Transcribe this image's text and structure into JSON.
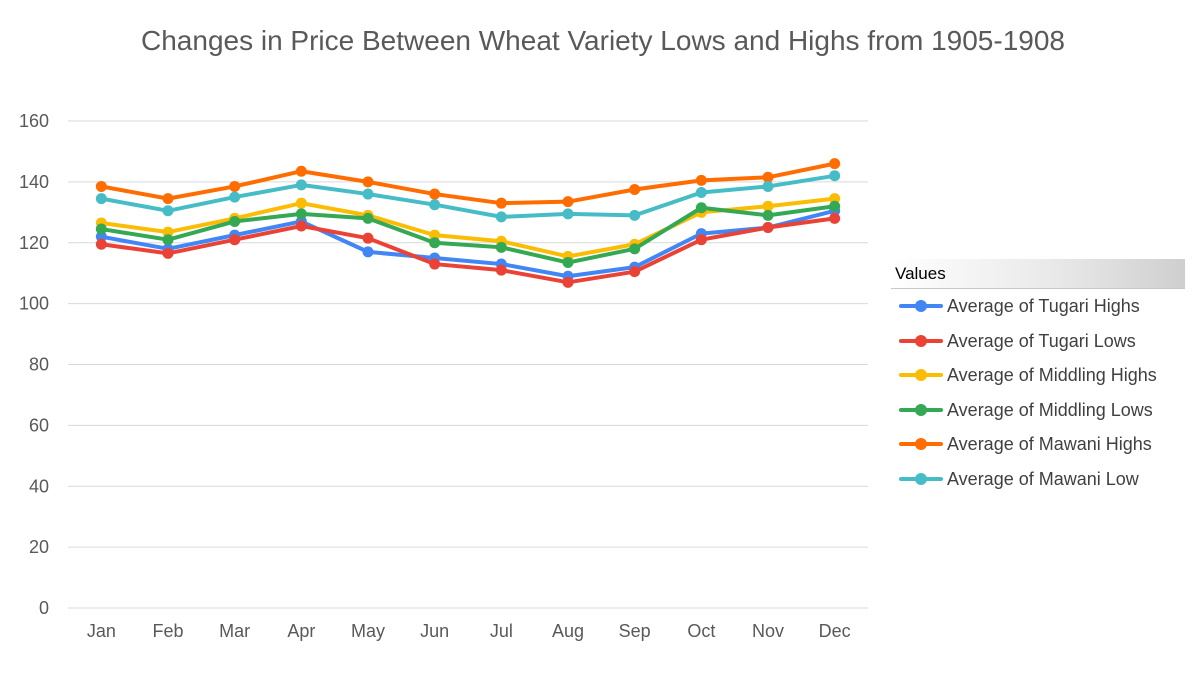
{
  "chart_data": {
    "type": "line",
    "title": "Changes in Price Between Wheat Variety Lows and Highs from 1905-1908",
    "xlabel": "",
    "ylabel": "",
    "ylim": [
      0,
      160
    ],
    "yticks": [
      0,
      20,
      40,
      60,
      80,
      100,
      120,
      140,
      160
    ],
    "grid": true,
    "legend_title": "Values",
    "legend_position": "right",
    "categories": [
      "Jan",
      "Feb",
      "Mar",
      "Apr",
      "May",
      "Jun",
      "Jul",
      "Aug",
      "Sep",
      "Oct",
      "Nov",
      "Dec"
    ],
    "series": [
      {
        "name": "Average of Tugari Highs",
        "color": "#4285f4",
        "values": [
          122,
          118,
          122.5,
          127,
          117,
          115,
          113,
          109,
          112,
          123,
          125,
          130.5
        ]
      },
      {
        "name": "Average of Tugari Lows",
        "color": "#ea4335",
        "values": [
          119.5,
          116.5,
          121,
          125.5,
          121.5,
          113,
          111,
          107,
          110.5,
          121,
          125,
          128
        ]
      },
      {
        "name": "Average of Middling Highs",
        "color": "#fbbc04",
        "values": [
          126.5,
          123.5,
          128,
          133,
          129,
          122.5,
          120.5,
          115.5,
          119.5,
          130,
          132,
          134.5
        ]
      },
      {
        "name": "Average of Middling Lows",
        "color": "#34a853",
        "values": [
          124.5,
          121,
          127,
          129.5,
          128,
          120,
          118.5,
          113.5,
          118,
          131.5,
          129,
          132
        ]
      },
      {
        "name": "Average of Mawani Highs",
        "color": "#ff6d01",
        "values": [
          138.5,
          134.5,
          138.5,
          143.5,
          140,
          136,
          133,
          133.5,
          137.5,
          140.5,
          141.5,
          146
        ]
      },
      {
        "name": "Average of Mawani Low",
        "color": "#46bdc6",
        "values": [
          134.5,
          130.5,
          135,
          139,
          136,
          132.5,
          128.5,
          129.5,
          129,
          136.5,
          138.5,
          142
        ]
      }
    ]
  }
}
